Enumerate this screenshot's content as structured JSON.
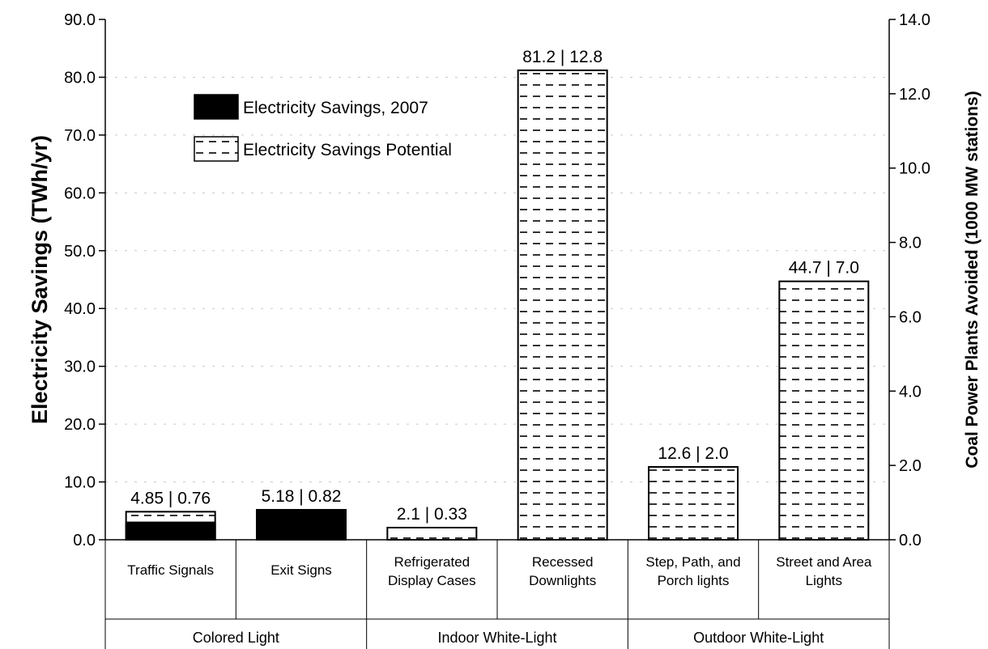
{
  "chart_data": {
    "type": "bar",
    "categories": [
      "Traffic Signals",
      "Exit Signs",
      "Refrigerated Display Cases",
      "Recessed Downlights",
      "Step, Path, and Porch lights",
      "Street and Area Lights"
    ],
    "category_lines": [
      [
        "Traffic Signals"
      ],
      [
        "Exit Signs"
      ],
      [
        "Refrigerated",
        "Display Cases"
      ],
      [
        "Recessed",
        "Downlights"
      ],
      [
        "Step, Path, and",
        "Porch lights"
      ],
      [
        "Street and Area",
        "Lights"
      ]
    ],
    "groups": [
      {
        "name": "Colored Light",
        "categories": [
          0,
          1
        ]
      },
      {
        "name": "Indoor White-Light",
        "categories": [
          2,
          3
        ]
      },
      {
        "name": "Outdoor White-Light",
        "categories": [
          4,
          5
        ]
      }
    ],
    "series": [
      {
        "name": "Electricity Savings, 2007",
        "values": [
          3.0,
          5.18,
          0,
          0,
          0,
          0
        ],
        "color": "#000000"
      },
      {
        "name": "Electricity Savings Potential",
        "values": [
          4.85,
          5.18,
          2.1,
          81.2,
          12.6,
          44.7
        ],
        "color": "#ffffff"
      }
    ],
    "data_labels": [
      "4.85  |  0.76",
      "5.18  |  0.82",
      "2.1  |  0.33",
      "81.2  |  12.8",
      "12.6  |  2.0",
      "44.7  |  7.0"
    ],
    "ylabel": "Electricity Savings (TWh/yr)",
    "y2label": "Coal Power Plants Avoided (1000 MW stations)",
    "ylim": [
      0,
      90
    ],
    "y2lim": [
      0,
      14
    ],
    "yticks": [
      "0.0",
      "10.0",
      "20.0",
      "30.0",
      "40.0",
      "50.0",
      "60.0",
      "70.0",
      "80.0",
      "90.0"
    ],
    "y2ticks": [
      "0.0",
      "2.0",
      "4.0",
      "6.0",
      "8.0",
      "10.0",
      "12.0",
      "14.0"
    ],
    "legend_position": "top-left",
    "grid": true
  }
}
